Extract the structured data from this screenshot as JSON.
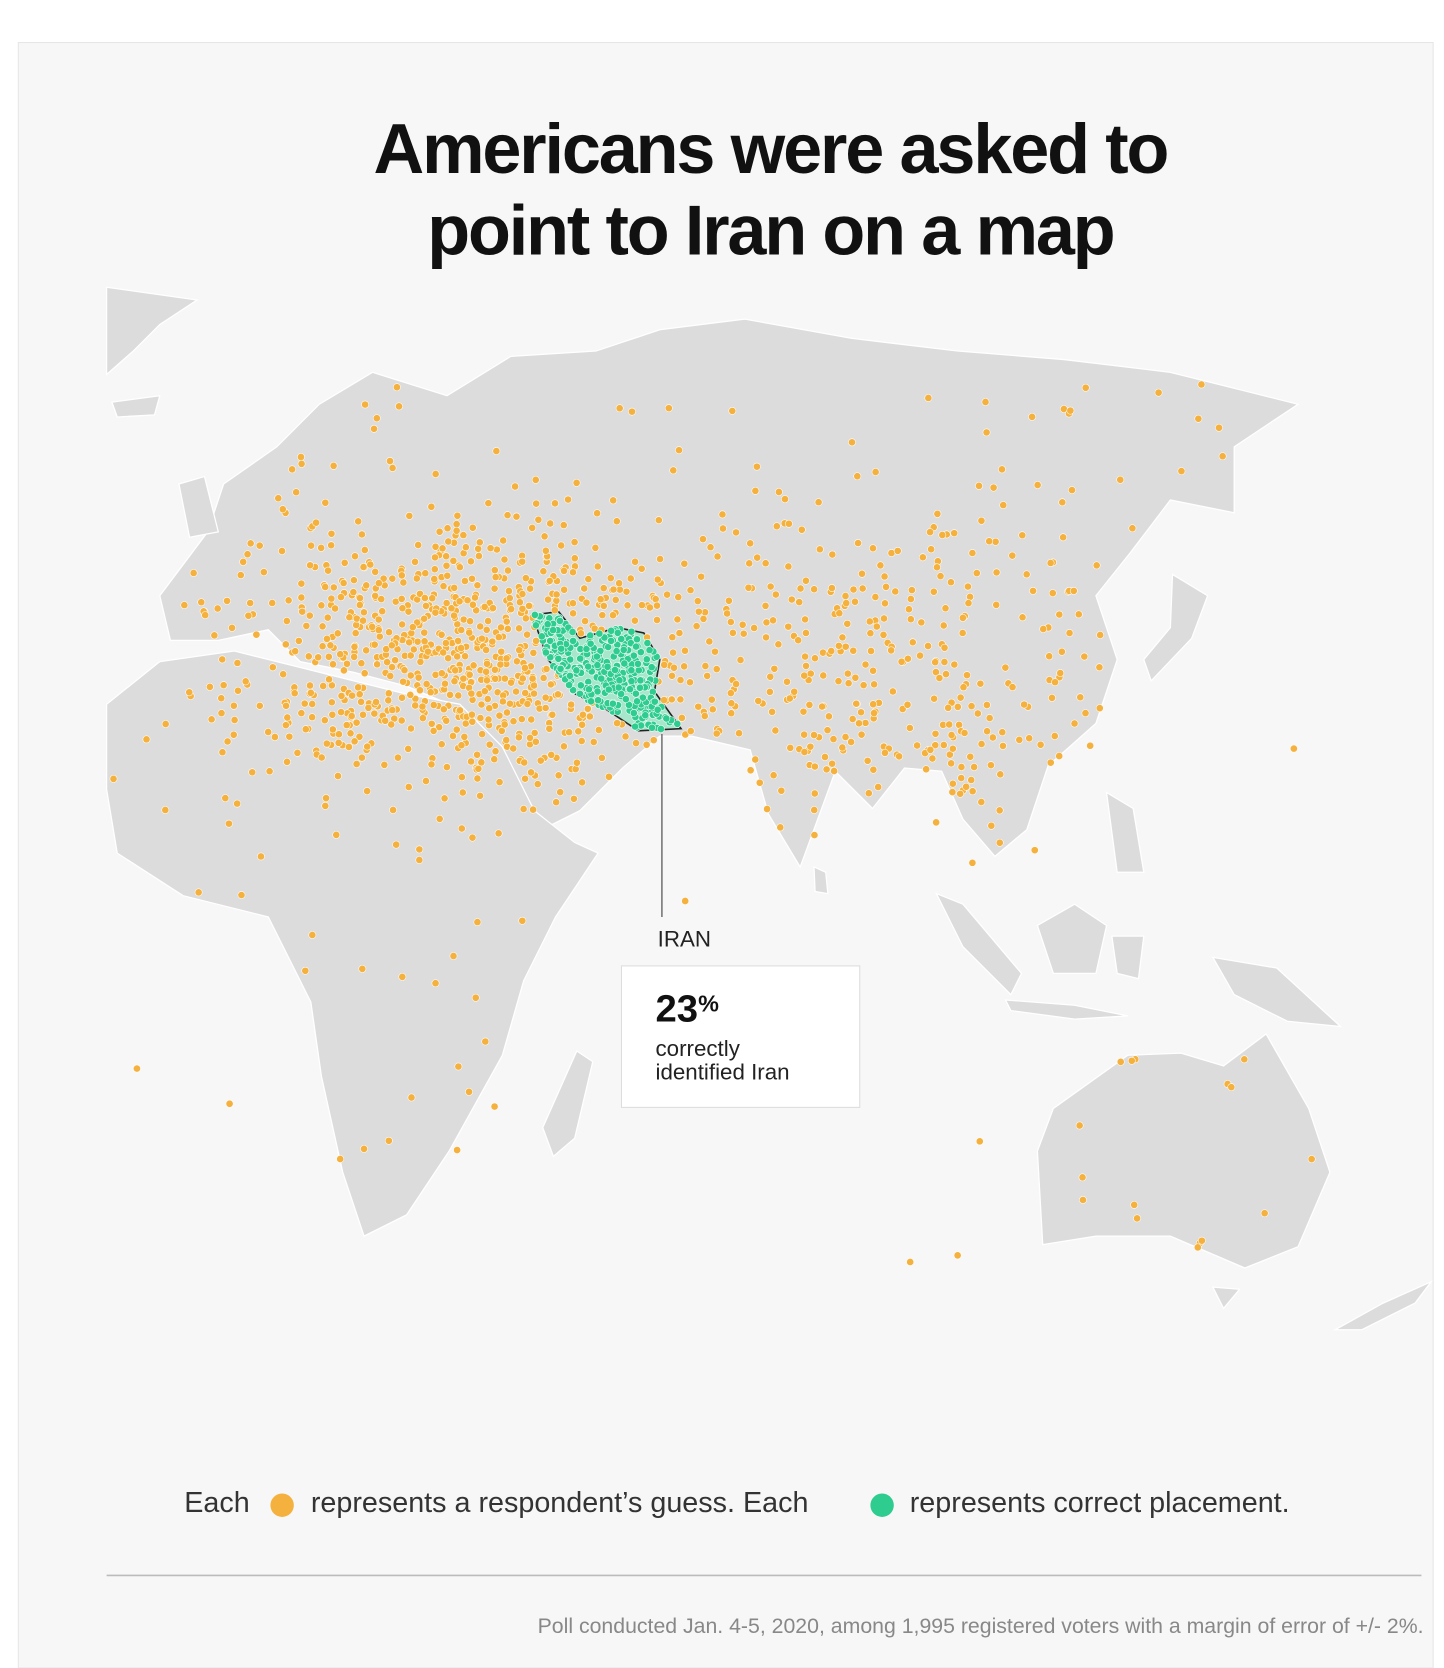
{
  "title": [
    "Americans were asked to",
    "point to Iran on a map"
  ],
  "callout": {
    "country": "IRAN",
    "stat": "23%",
    "description": [
      "correctly",
      "identified Iran"
    ]
  },
  "legend": {
    "prefix": "Each",
    "guess": "represents a respondent’s guess. Each",
    "correct": "represents correct placement."
  },
  "footer": "Poll conducted Jan. 4-5, 2020, among 1,995 registered voters with a margin of error of +/- 2%."
}
